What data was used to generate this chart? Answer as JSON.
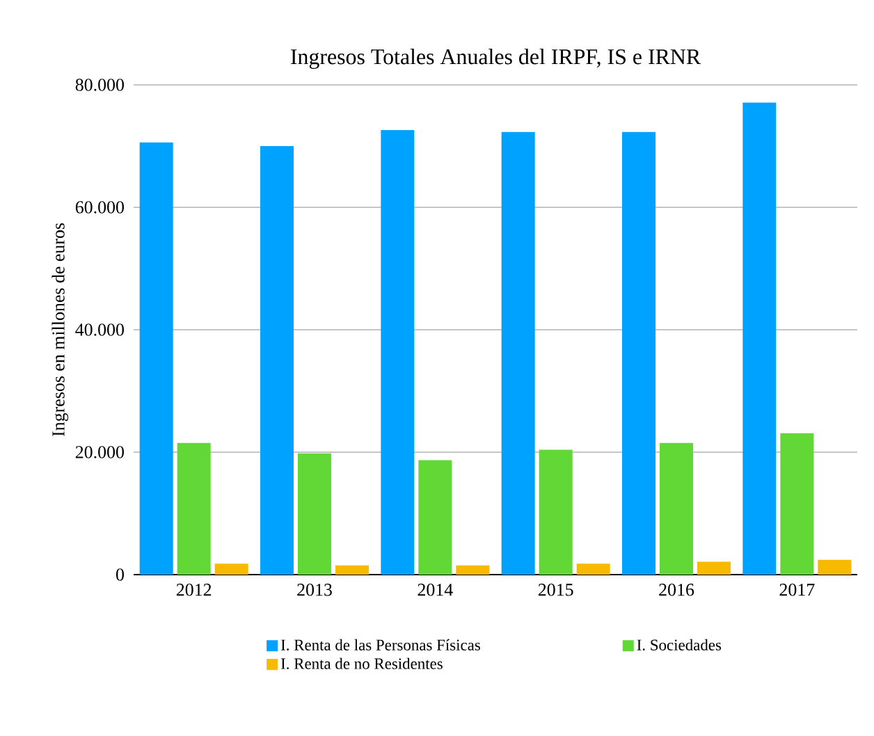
{
  "chart_data": {
    "type": "bar",
    "title": "Ingresos Totales Anuales del IRPF, IS e IRNR",
    "ylabel": "Ingresos en millones de euros",
    "categories": [
      "2012",
      "2013",
      "2014",
      "2015",
      "2016",
      "2017"
    ],
    "series": [
      {
        "name": "I. Renta de las Personas Físicas",
        "color": "#00a2ff",
        "values": [
          70600,
          70000,
          72600,
          72300,
          72300,
          77100
        ]
      },
      {
        "name": "I. Sociedades",
        "color": "#61d836",
        "values": [
          21500,
          19800,
          18700,
          20400,
          21500,
          23100
        ]
      },
      {
        "name": "I. Renta de no Residentes",
        "color": "#f8ba00",
        "values": [
          1800,
          1500,
          1500,
          1800,
          2100,
          2400
        ]
      }
    ],
    "ylim": [
      0,
      80000
    ],
    "yticks": [
      {
        "value": 0,
        "label": "0"
      },
      {
        "value": 20000,
        "label": "20.000"
      },
      {
        "value": 40000,
        "label": "40.000"
      },
      {
        "value": 60000,
        "label": "60.000"
      },
      {
        "value": 80000,
        "label": "80.000"
      }
    ],
    "grid": "y",
    "legend": "bottom"
  }
}
